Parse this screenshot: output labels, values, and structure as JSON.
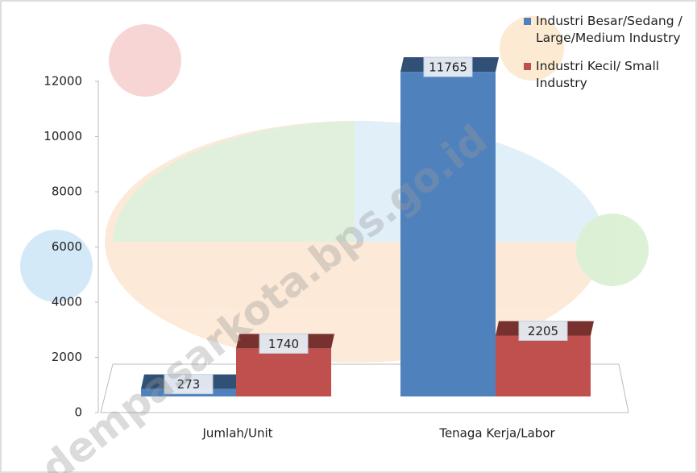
{
  "chart_data": {
    "type": "bar",
    "categories": [
      "Jumlah/Unit",
      "Tenaga Kerja/Labor"
    ],
    "series": [
      {
        "name": "Industri Besar/Sedang / Large/Medium Industry",
        "color": "#4f81bd",
        "values": [
          273,
          11765
        ]
      },
      {
        "name": "Industri Kecil/ Small Industry",
        "color": "#c0504d",
        "values": [
          1740,
          2205
        ]
      }
    ],
    "ylim": [
      0,
      12000
    ],
    "yticks": [
      0,
      2000,
      4000,
      6000,
      8000,
      10000,
      12000
    ],
    "legend": "top-right",
    "watermark": "dempasarkota.bps.go.id"
  }
}
